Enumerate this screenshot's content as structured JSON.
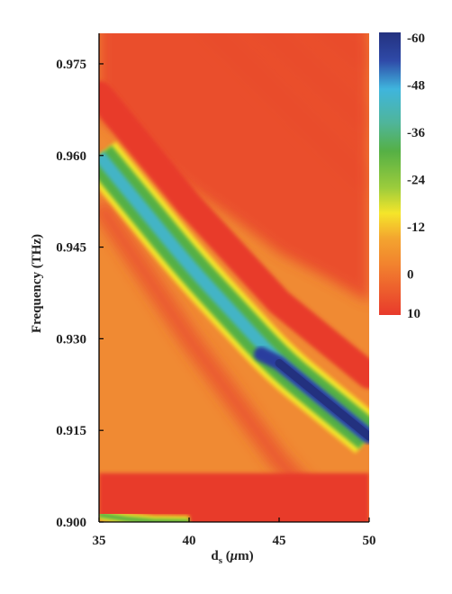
{
  "chart_data": {
    "type": "heatmap",
    "title": "",
    "xlabel": {
      "base": "d",
      "subscript": "s",
      "unit_open": " (",
      "unit_mu": "μ",
      "unit_rest": "m)"
    },
    "ylabel": "Frequency (THz)",
    "xlim": [
      35,
      50
    ],
    "ylim": [
      0.9,
      0.98
    ],
    "x_ticks": [
      "35",
      "40",
      "45",
      "50"
    ],
    "x_tick_values": [
      35,
      40,
      45,
      50
    ],
    "y_ticks": [
      "0.900",
      "0.915",
      "0.930",
      "0.945",
      "0.960",
      "0.975"
    ],
    "y_tick_values": [
      0.9,
      0.915,
      0.93,
      0.945,
      0.96,
      0.975
    ],
    "colorbar": {
      "ticks": [
        "-60",
        "-48",
        "-36",
        "-24",
        "-12",
        "0",
        "10"
      ],
      "tick_values": [
        -60,
        -48,
        -36,
        -24,
        -12,
        0,
        10
      ],
      "range": [
        -60,
        10
      ]
    },
    "resonance_band": {
      "x": [
        35,
        37.5,
        40,
        42.5,
        45,
        47.5,
        50
      ],
      "center_frequency": [
        0.96,
        0.951,
        0.942,
        0.934,
        0.926,
        0.92,
        0.914
      ],
      "min_value": [
        -32,
        -36,
        -38,
        -41,
        -47,
        -57,
        -60
      ]
    },
    "lower_band": {
      "x": [
        35,
        36.5,
        38,
        40
      ],
      "center_frequency": [
        0.9012,
        0.9005,
        0.9001,
        0.9
      ]
    },
    "colors": {
      "red": "#e83a2c",
      "orange": "#f2832e",
      "yellow": "#f5e52a",
      "green": "#55b045",
      "cyan": "#3fb5dd",
      "blue": "#2c3e9e",
      "navy": "#23317f"
    }
  }
}
